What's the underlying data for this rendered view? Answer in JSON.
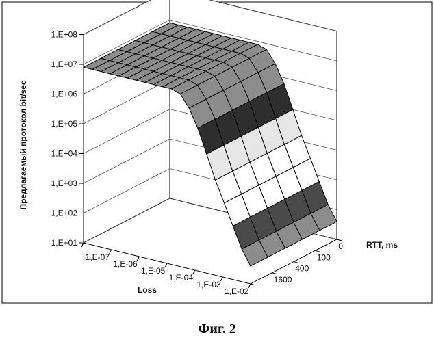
{
  "chart_data": {
    "type": "surface-3d",
    "title": "",
    "zlabel": "Предлагаемый протокол bit/sec",
    "xlabel": "Loss",
    "ylabel": "RTT, ms",
    "z_scale": "log",
    "zlim": [
      10,
      100000000
    ],
    "z_ticks": [
      "1,E+01",
      "1,E+02",
      "1,E+03",
      "1,E+04",
      "1,E+05",
      "1,E+06",
      "1,E+07",
      "1,E+08"
    ],
    "x_ticks": [
      "1,E-07",
      "1,E-06",
      "1,E-05",
      "1,E-04",
      "1,E-03",
      "1,E-02"
    ],
    "y_ticks": [
      "0",
      "100",
      "400",
      "1600"
    ],
    "grid": true,
    "loss": [
      1e-07,
      1e-06,
      1e-05,
      0.0001,
      0.001,
      0.01
    ],
    "rtt_ms": [
      0,
      100,
      400,
      1600
    ],
    "surface_log10_z": [
      [
        6.9,
        6.9,
        6.9,
        6.9,
        6.9,
        6.9,
        6.9,
        6.9,
        6.9,
        6.9,
        6.9,
        6.8,
        6.4,
        5.8,
        5.0,
        4.2,
        3.5,
        2.8,
        2.1,
        1.6
      ],
      [
        6.9,
        6.9,
        6.9,
        6.9,
        6.9,
        6.9,
        6.9,
        6.9,
        6.9,
        6.9,
        6.9,
        6.8,
        6.4,
        5.8,
        5.0,
        4.2,
        3.5,
        2.8,
        2.1,
        1.6
      ],
      [
        6.9,
        6.9,
        6.9,
        6.9,
        6.9,
        6.9,
        6.9,
        6.9,
        6.9,
        6.9,
        6.9,
        6.8,
        6.4,
        5.8,
        5.0,
        4.2,
        3.5,
        2.8,
        2.1,
        1.6
      ],
      [
        6.9,
        6.9,
        6.9,
        6.9,
        6.9,
        6.9,
        6.9,
        6.9,
        6.9,
        6.9,
        6.9,
        6.8,
        6.4,
        5.8,
        5.0,
        4.2,
        3.5,
        2.8,
        2.1,
        1.6
      ],
      [
        6.9,
        6.9,
        6.9,
        6.9,
        6.9,
        6.9,
        6.9,
        6.9,
        6.9,
        6.9,
        6.9,
        6.8,
        6.4,
        5.8,
        5.0,
        4.2,
        3.5,
        2.8,
        2.1,
        1.6
      ],
      [
        6.9,
        6.9,
        6.9,
        6.9,
        6.9,
        6.9,
        6.9,
        6.9,
        6.9,
        6.9,
        6.9,
        6.8,
        6.4,
        5.8,
        5.0,
        4.2,
        3.5,
        2.8,
        2.1,
        1.6
      ]
    ],
    "colors": {
      "band_above_6": "#8c8c8c",
      "band_5_6": "#2e2e2e",
      "band_4_5": "#e6e6e6",
      "band_3_4": "#ffffff",
      "band_2_3": "#4a4a4a",
      "band_1_2": "#8c8c8c",
      "walls": "#ffffff",
      "lines": "#000000",
      "gridlines": "#555555"
    }
  },
  "caption": "Фиг. 2"
}
